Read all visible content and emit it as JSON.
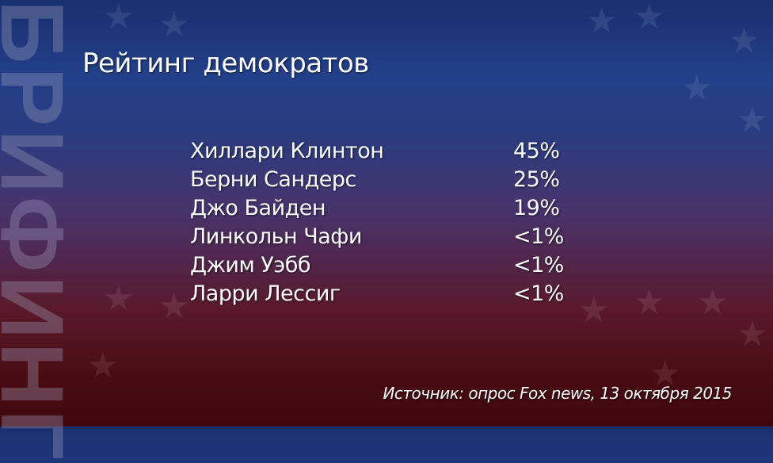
{
  "brand": "БРИФИНГ",
  "title": "Рейтинг демократов",
  "rows": [
    {
      "name": "Хиллари Клинтон",
      "value": "45%"
    },
    {
      "name": "Берни Сандерс",
      "value": "25%"
    },
    {
      "name": "Джо Байден",
      "value": "19%"
    },
    {
      "name": "Линкольн Чафи",
      "value": "<1%"
    },
    {
      "name": "Джим Уэбб",
      "value": "<1%"
    },
    {
      "name": "Ларри Лессиг",
      "value": "<1%"
    }
  ],
  "source": "Источник: опрос Fox news, 13 октября 2015",
  "colors": {
    "top": "#1a2f6e",
    "middle": "#4e2a55",
    "bottom": "#40080e"
  }
}
